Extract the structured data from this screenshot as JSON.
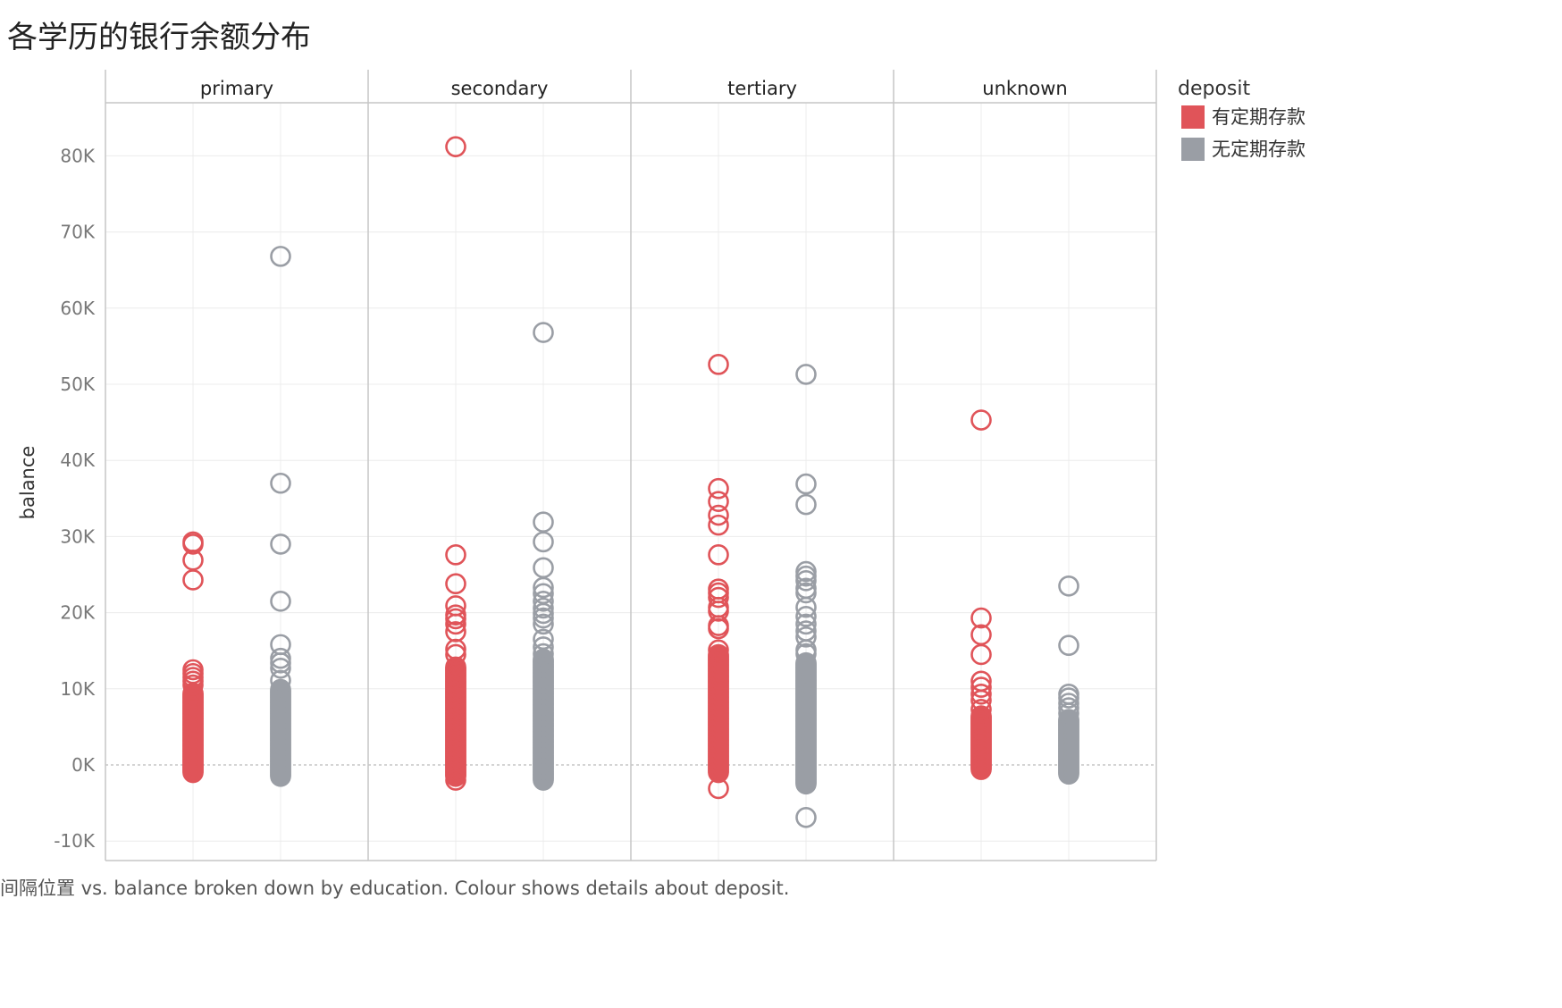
{
  "title": "各学历的银行余额分布",
  "caption": "间隔位置 vs. balance broken down by education.  Colour shows details about deposit.",
  "colors": {
    "yes": "#e05459",
    "no": "#9a9ea5",
    "grid": "#ececec",
    "frame": "#c6c6c6",
    "zero": "#aaaaaa"
  },
  "chart_data": {
    "type": "scatter",
    "marker": "hollow-circle",
    "facet_by": "education",
    "ylabel": "balance",
    "ylim": [
      -10000,
      87000
    ],
    "yticks": [
      -10000,
      0,
      10000,
      20000,
      30000,
      40000,
      50000,
      60000,
      70000,
      80000
    ],
    "ytick_labels": [
      "-10K",
      "0K",
      "10K",
      "20K",
      "30K",
      "40K",
      "50K",
      "60K",
      "70K",
      "80K"
    ],
    "legend": {
      "title": "deposit",
      "position": "top-right",
      "entries": [
        "有定期存款",
        "无定期存款"
      ]
    },
    "facets": [
      {
        "name": "primary",
        "series": [
          {
            "name": "有定期存款",
            "dense_range": [
              -1000,
              9500
            ],
            "values": [
              10500,
              11000,
              11500,
              12000,
              12500,
              24300,
              26900,
              29000,
              29300
            ]
          },
          {
            "name": "无定期存款",
            "dense_range": [
              -1500,
              10000
            ],
            "values": [
              11100,
              12700,
              13400,
              14000,
              15800,
              21500,
              29000,
              37000,
              66800
            ]
          }
        ]
      },
      {
        "name": "secondary",
        "series": [
          {
            "name": "有定期存款",
            "dense_range": [
              -1500,
              13000
            ],
            "values": [
              -2000,
              14500,
              15200,
              17500,
              18500,
              19200,
              19700,
              20900,
              23800,
              27600,
              81200
            ]
          },
          {
            "name": "无定期存款",
            "dense_range": [
              -2000,
              14000
            ],
            "values": [
              14600,
              15500,
              16500,
              18500,
              19300,
              19900,
              20600,
              21500,
              22500,
              23300,
              25900,
              29300,
              31900,
              56800
            ]
          }
        ]
      },
      {
        "name": "tertiary",
        "series": [
          {
            "name": "有定期存款",
            "dense_range": [
              -1000,
              14500
            ],
            "values": [
              -3100,
              15100,
              17900,
              18300,
              20200,
              20700,
              22000,
              22600,
              23100,
              27600,
              31500,
              32800,
              34600,
              36300,
              52600
            ]
          },
          {
            "name": "无定期存款",
            "dense_range": [
              -2500,
              13500
            ],
            "values": [
              -6900,
              14600,
              15100,
              16800,
              17600,
              18500,
              19500,
              20700,
              22600,
              23200,
              24200,
              24800,
              25400,
              34200,
              36900,
              51300
            ]
          }
        ]
      },
      {
        "name": "unknown",
        "series": [
          {
            "name": "有定期存款",
            "dense_range": [
              -600,
              6500
            ],
            "values": [
              7300,
              8500,
              9300,
              10200,
              11000,
              14500,
              17100,
              19300,
              45300
            ]
          },
          {
            "name": "无定期存款",
            "dense_range": [
              -1200,
              6000
            ],
            "values": [
              6800,
              7500,
              8100,
              8800,
              9300,
              15700,
              23500
            ]
          }
        ]
      }
    ]
  }
}
